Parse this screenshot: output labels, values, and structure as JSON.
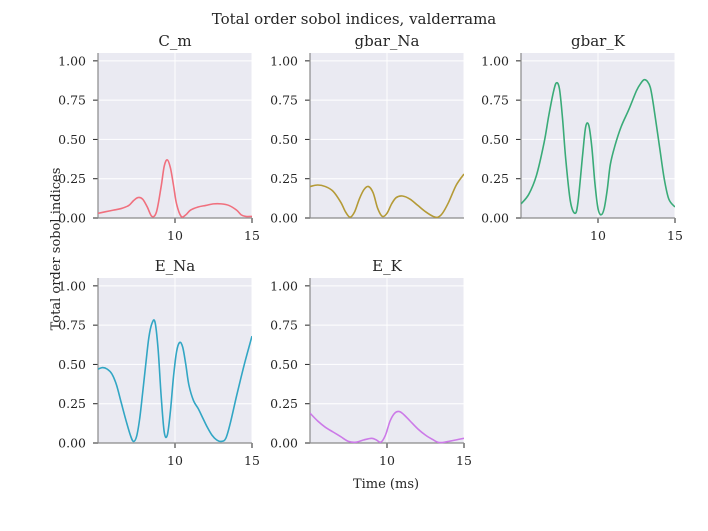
{
  "figure": {
    "suptitle": "Total order sobol indices, valderrama",
    "xlabel": "Time (ms)",
    "ylabel": "Total order sobol indices",
    "background": "#EAEAF2",
    "grid_color": "#FFFFFF"
  },
  "chart_data": [
    {
      "type": "line",
      "title": "C_m",
      "color": "#F0707E",
      "xlim": [
        5,
        15
      ],
      "ylim": [
        0,
        1.05
      ],
      "xticks": [
        "10",
        "15"
      ],
      "yticks": [
        "0.00",
        "0.25",
        "0.50",
        "0.75",
        "1.00"
      ],
      "series": [
        {
          "x": [
            5,
            5.5,
            6,
            6.5,
            7,
            7.3,
            7.6,
            7.9,
            8.2,
            8.5,
            8.8,
            9.1,
            9.3,
            9.5,
            9.7,
            9.9,
            10.1,
            10.4,
            10.7,
            11,
            11.5,
            12,
            12.5,
            13,
            13.5,
            14,
            14.3,
            14.6,
            15
          ],
          "y": [
            0.03,
            0.04,
            0.05,
            0.06,
            0.08,
            0.11,
            0.13,
            0.12,
            0.07,
            0.01,
            0.04,
            0.2,
            0.33,
            0.37,
            0.32,
            0.21,
            0.09,
            0.01,
            0.02,
            0.05,
            0.07,
            0.08,
            0.09,
            0.09,
            0.08,
            0.05,
            0.02,
            0.01,
            0.01
          ]
        }
      ]
    },
    {
      "type": "line",
      "title": "gbar_Na",
      "color": "#B49A36",
      "xlim": [
        5,
        15
      ],
      "ylim": [
        0,
        1.05
      ],
      "xticks": [],
      "yticks": [
        "0.00",
        "0.25",
        "0.50",
        "0.75",
        "1.00"
      ],
      "series": [
        {
          "x": [
            5,
            5.5,
            6,
            6.5,
            7,
            7.3,
            7.6,
            7.9,
            8.2,
            8.5,
            8.8,
            9.1,
            9.4,
            9.7,
            10,
            10.3,
            10.6,
            11,
            11.5,
            12,
            12.5,
            13,
            13.3,
            13.6,
            14,
            14.5,
            15
          ],
          "y": [
            0.2,
            0.21,
            0.2,
            0.17,
            0.1,
            0.04,
            0.005,
            0.04,
            0.12,
            0.18,
            0.2,
            0.16,
            0.06,
            0.01,
            0.03,
            0.09,
            0.13,
            0.14,
            0.12,
            0.08,
            0.04,
            0.01,
            0.005,
            0.03,
            0.1,
            0.21,
            0.28
          ]
        }
      ]
    },
    {
      "type": "line",
      "title": "gbar_K",
      "color": "#3AAB78",
      "xlim": [
        5,
        15
      ],
      "ylim": [
        0,
        1.05
      ],
      "xticks": [
        "10",
        "15"
      ],
      "yticks": [
        "0.00",
        "0.25",
        "0.50",
        "0.75",
        "1.00"
      ],
      "series": [
        {
          "x": [
            5,
            5.5,
            6,
            6.5,
            6.8,
            7.1,
            7.3,
            7.5,
            7.7,
            7.9,
            8.2,
            8.5,
            8.7,
            9,
            9.2,
            9.4,
            9.6,
            9.8,
            10,
            10.2,
            10.4,
            10.6,
            10.8,
            11.1,
            11.5,
            12,
            12.5,
            12.8,
            13,
            13.2,
            13.4,
            13.6,
            14,
            14.3,
            14.6,
            15
          ],
          "y": [
            0.09,
            0.15,
            0.27,
            0.48,
            0.65,
            0.8,
            0.86,
            0.82,
            0.63,
            0.38,
            0.11,
            0.03,
            0.1,
            0.4,
            0.58,
            0.59,
            0.45,
            0.22,
            0.06,
            0.02,
            0.06,
            0.18,
            0.34,
            0.46,
            0.58,
            0.69,
            0.81,
            0.86,
            0.88,
            0.87,
            0.83,
            0.72,
            0.45,
            0.25,
            0.12,
            0.07
          ]
        }
      ]
    },
    {
      "type": "line",
      "title": "E_Na",
      "color": "#32A6C4",
      "xlim": [
        5,
        15
      ],
      "ylim": [
        0,
        1.05
      ],
      "xticks": [
        "10",
        "15"
      ],
      "yticks": [
        "0.00",
        "0.25",
        "0.50",
        "0.75",
        "1.00"
      ],
      "series": [
        {
          "x": [
            5,
            5.3,
            5.6,
            5.9,
            6.2,
            6.5,
            6.8,
            7.1,
            7.3,
            7.5,
            7.7,
            7.9,
            8.1,
            8.3,
            8.5,
            8.7,
            8.9,
            9.1,
            9.3,
            9.5,
            9.7,
            9.9,
            10.1,
            10.3,
            10.5,
            10.7,
            10.9,
            11.2,
            11.5,
            11.8,
            12.1,
            12.4,
            12.7,
            13,
            13.3,
            13.6,
            14,
            14.5,
            15
          ],
          "y": [
            0.47,
            0.48,
            0.47,
            0.44,
            0.37,
            0.26,
            0.15,
            0.05,
            0.01,
            0.04,
            0.15,
            0.32,
            0.5,
            0.67,
            0.76,
            0.77,
            0.6,
            0.3,
            0.07,
            0.05,
            0.2,
            0.42,
            0.58,
            0.64,
            0.61,
            0.5,
            0.37,
            0.27,
            0.22,
            0.16,
            0.1,
            0.05,
            0.02,
            0.01,
            0.03,
            0.13,
            0.3,
            0.5,
            0.68
          ]
        }
      ]
    },
    {
      "type": "line",
      "title": "E_K",
      "color": "#CC7AE8",
      "xlim": [
        5,
        15
      ],
      "ylim": [
        0,
        1.05
      ],
      "xticks": [
        "10",
        "15"
      ],
      "yticks": [
        "0.00",
        "0.25",
        "0.50",
        "0.75",
        "1.00"
      ],
      "series": [
        {
          "x": [
            5,
            5.5,
            6,
            6.5,
            7,
            7.5,
            8,
            8.5,
            9,
            9.3,
            9.6,
            9.9,
            10.2,
            10.5,
            10.8,
            11.1,
            11.5,
            12,
            12.5,
            13,
            13.3,
            13.6,
            14,
            14.5,
            15
          ],
          "y": [
            0.19,
            0.14,
            0.1,
            0.07,
            0.04,
            0.01,
            0.005,
            0.02,
            0.03,
            0.02,
            0.005,
            0.05,
            0.14,
            0.19,
            0.2,
            0.18,
            0.14,
            0.09,
            0.05,
            0.02,
            0.005,
            0.003,
            0.01,
            0.02,
            0.03
          ]
        }
      ]
    }
  ]
}
